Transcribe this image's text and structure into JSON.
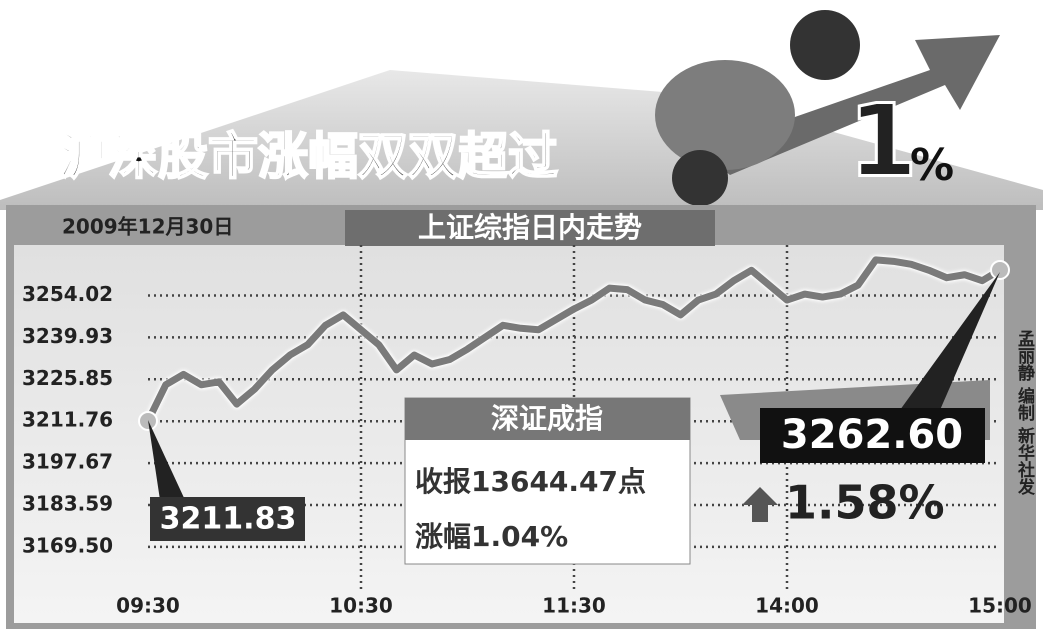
{
  "chart_data": {
    "type": "line",
    "title": "沪深股市涨幅双双超过",
    "title_big": "1",
    "title_unit": "%",
    "date": "2009年12月30日",
    "subtitle": "上证综指日内走势",
    "categories": [
      "09:30",
      null,
      null,
      null,
      null,
      null,
      null,
      null,
      null,
      null,
      null,
      null,
      "10:30",
      null,
      null,
      null,
      null,
      null,
      null,
      null,
      null,
      null,
      null,
      null,
      "11:30",
      null,
      null,
      null,
      null,
      null,
      null,
      null,
      null,
      null,
      null,
      null,
      "14:00",
      null,
      null,
      null,
      null,
      null,
      null,
      null,
      null,
      null,
      null,
      null,
      "15:00"
    ],
    "series": [
      {
        "name": "上证综指",
        "color": "#7a7a7a",
        "values": [
          3211.83,
          3224,
          3227.5,
          3224,
          3225,
          3217.5,
          3222.5,
          3229,
          3234,
          3237.5,
          3244,
          3247.5,
          3242.5,
          3237.5,
          3229,
          3234,
          3231,
          3232.5,
          3236,
          3240,
          3244,
          3243,
          3242.5,
          3246,
          3249.5,
          3252.5,
          3256.5,
          3256,
          3252.5,
          3251,
          3247.5,
          3252.5,
          3254.5,
          3259,
          3262.5,
          3257.5,
          3252.5,
          3254.5,
          3253.5,
          3254.5,
          3257.5,
          3266,
          3265.5,
          3264.5,
          3262.5,
          3260,
          3261,
          3259,
          3262.6
        ]
      }
    ],
    "ylim": [
      3155,
      3271
    ],
    "yticks": [
      {
        "value": 3169.5,
        "label": "3169.50"
      },
      3183.59,
      3197.67,
      3211.76,
      3225.85,
      3239.93,
      3254.02
    ],
    "grid": true,
    "open_label": "3211.83",
    "close_label": "3262.60",
    "change_label": "1.58%",
    "shenzhen": {
      "title": "深证成指",
      "close": "收报13644.47点",
      "change": "涨幅1.04%"
    },
    "credit": "孟丽静 编制 新华社发"
  }
}
